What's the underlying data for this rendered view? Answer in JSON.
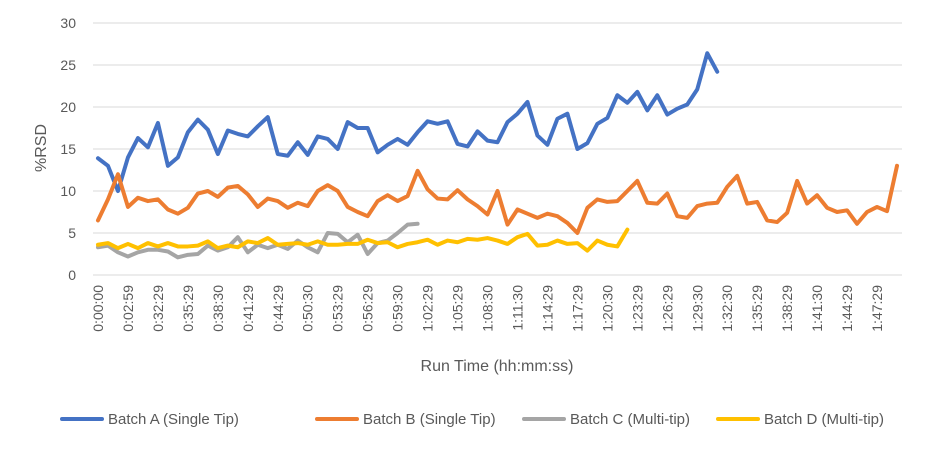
{
  "chart_data": {
    "type": "line",
    "title": "",
    "xlabel": "Run Time (hh:mm:ss)",
    "ylabel": "%RSD",
    "ylim": [
      0,
      30
    ],
    "yticks": [
      0,
      5,
      10,
      15,
      20,
      25,
      30
    ],
    "grid": true,
    "legend_position": "bottom",
    "x_tick_labels": [
      "0:00:00",
      "0:02:59",
      "0:32:29",
      "0:35:29",
      "0:38:30",
      "0:41:29",
      "0:44:29",
      "0:50:30",
      "0:53:29",
      "0:56:29",
      "0:59:30",
      "1:02:29",
      "1:05:29",
      "1:08:30",
      "1:11:30",
      "1:14:29",
      "1:17:29",
      "1:20:30",
      "1:23:29",
      "1:26:29",
      "1:29:30",
      "1:32:30",
      "1:35:29",
      "1:38:29",
      "1:41:30",
      "1:44:29",
      "1:47:29"
    ],
    "x_count": 81,
    "series": [
      {
        "name": "Batch A (Single Tip)",
        "color": "#4472C4",
        "values": [
          13.9,
          13.0,
          10.0,
          14.0,
          16.3,
          15.2,
          18.1,
          13.0,
          14.0,
          17.0,
          18.5,
          17.3,
          14.4,
          17.2,
          16.8,
          16.5,
          17.7,
          18.8,
          14.4,
          14.2,
          15.8,
          14.3,
          16.5,
          16.2,
          15.0,
          18.2,
          17.5,
          17.5,
          14.6,
          15.5,
          16.2,
          15.5,
          17.0,
          18.3,
          18.0,
          18.3,
          15.6,
          15.3,
          17.1,
          16.0,
          15.8,
          18.2,
          19.2,
          20.6,
          16.6,
          15.5,
          18.6,
          19.2,
          15.0,
          15.7,
          18.0,
          18.7,
          21.4,
          20.5,
          21.8,
          19.6,
          21.4,
          19.1,
          19.8,
          20.3,
          22.1,
          26.4,
          24.2
        ]
      },
      {
        "name": "Batch B (Single Tip)",
        "color": "#ED7D31",
        "values": [
          6.5,
          9.0,
          12.0,
          8.1,
          9.2,
          8.8,
          9.0,
          7.8,
          7.3,
          8.0,
          9.7,
          10.0,
          9.3,
          10.4,
          10.6,
          9.6,
          8.1,
          9.1,
          8.8,
          8.0,
          8.6,
          8.2,
          10.0,
          10.7,
          10.0,
          8.1,
          7.5,
          7.0,
          8.8,
          9.5,
          8.8,
          9.4,
          12.4,
          10.2,
          9.1,
          9.0,
          10.1,
          9.0,
          8.2,
          7.2,
          10.0,
          6.0,
          7.8,
          7.3,
          6.8,
          7.3,
          7.0,
          6.2,
          5.0,
          8.0,
          9.0,
          8.7,
          8.8,
          10.0,
          11.2,
          8.6,
          8.5,
          9.7,
          7.0,
          6.8,
          8.2,
          8.5,
          8.6,
          10.5,
          11.8,
          8.5,
          8.7,
          6.5,
          6.3,
          7.4,
          11.2,
          8.5,
          9.5,
          8.0,
          7.5,
          7.7,
          6.1,
          7.5,
          8.1,
          7.6,
          13.0
        ]
      },
      {
        "name": "Batch C (Multi-tip)",
        "color": "#A5A5A5",
        "values": [
          3.3,
          3.5,
          2.7,
          2.2,
          2.7,
          3.0,
          3.0,
          2.8,
          2.1,
          2.4,
          2.5,
          3.5,
          2.9,
          3.3,
          4.5,
          2.7,
          3.6,
          3.2,
          3.6,
          3.1,
          4.1,
          3.3,
          2.7,
          5.0,
          4.9,
          3.9,
          4.8,
          2.5,
          3.8,
          4.1,
          5.0,
          6.0,
          6.1
        ]
      },
      {
        "name": "Batch D (Multi-tip)",
        "color": "#FFC000",
        "values": [
          3.6,
          3.8,
          3.2,
          3.7,
          3.2,
          3.8,
          3.4,
          3.8,
          3.4,
          3.4,
          3.5,
          4.0,
          3.2,
          3.5,
          3.3,
          4.0,
          3.8,
          4.4,
          3.6,
          3.7,
          3.8,
          3.6,
          4.0,
          3.6,
          3.6,
          3.7,
          3.7,
          4.2,
          3.8,
          3.9,
          3.3,
          3.7,
          3.9,
          4.2,
          3.6,
          4.1,
          3.9,
          4.3,
          4.2,
          4.4,
          4.1,
          3.7,
          4.5,
          4.9,
          3.5,
          3.6,
          4.1,
          3.7,
          3.8,
          2.9,
          4.1,
          3.6,
          3.4,
          5.4
        ]
      }
    ]
  }
}
